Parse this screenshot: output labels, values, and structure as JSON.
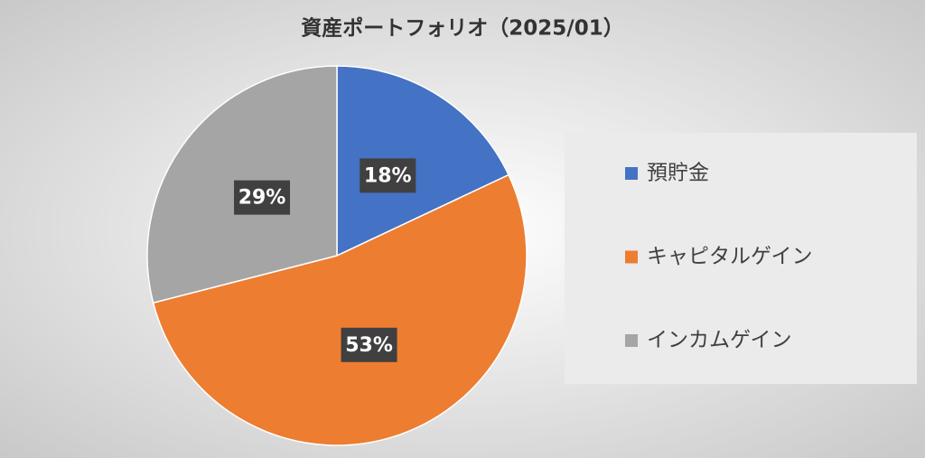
{
  "chart_data": {
    "type": "pie",
    "title": "資産ポートフォリオ（2025/01）",
    "categories": [
      "預貯金",
      "キャピタルゲイン",
      "インカムゲイン"
    ],
    "values": [
      18,
      53,
      29
    ],
    "value_labels": [
      "18%",
      "53%",
      "29%"
    ],
    "colors": [
      "#4472c4",
      "#ed7d31",
      "#a5a5a5"
    ],
    "legend": "right"
  }
}
